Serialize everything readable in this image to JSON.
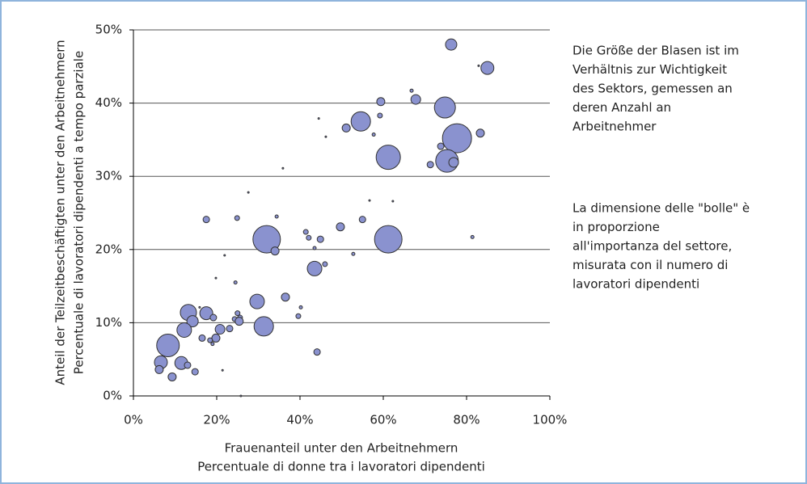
{
  "chart_data": {
    "type": "bubble",
    "xlabel": [
      "Frauenanteil unter den Arbeitnehmern",
      "Percentuale di donne tra i lavoratori dipendenti"
    ],
    "ylabel": [
      "Anteil der Teilzeitbeschäftigten unter den Arbeitnehmern",
      "Percentuale di lavoratori dipendenti a tempo parziale"
    ],
    "annotations": [
      [
        "Die Größe der Blasen ist im",
        "Verhältnis zur Wichtigkeit",
        "des Sektors, gemessen an",
        "deren Anzahl an",
        "Arbeitnehmer"
      ],
      [
        "La dimensione delle \"bolle\" è",
        "in proporzione",
        "all'importanza del settore,",
        "misurata con il numero di",
        "lavoratori dipendenti"
      ]
    ],
    "xlim": [
      0,
      100
    ],
    "ylim": [
      0,
      50
    ],
    "xticks": [
      {
        "value": 0,
        "label": "0%"
      },
      {
        "value": 20,
        "label": "20%"
      },
      {
        "value": 40,
        "label": "40%"
      },
      {
        "value": 60,
        "label": "60%"
      },
      {
        "value": 80,
        "label": "80%"
      },
      {
        "value": 100,
        "label": "100%"
      }
    ],
    "yticks": [
      {
        "value": 0,
        "label": "0%"
      },
      {
        "value": 10,
        "label": "10%"
      },
      {
        "value": 20,
        "label": "20%"
      },
      {
        "value": 30,
        "label": "30%"
      },
      {
        "value": 40,
        "label": "40%"
      },
      {
        "value": 50,
        "label": "50%"
      }
    ],
    "grid": true,
    "series": [
      {
        "color": "#8a92cf",
        "x": [
          76.3,
          85.0,
          82.9,
          74.8,
          67.8,
          66.8,
          59.4,
          54.6,
          59.2,
          51.1,
          44.5,
          46.2,
          57.7,
          77.7,
          73.8,
          83.3,
          61.2,
          75.3,
          76.9,
          71.3,
          35.9,
          27.6,
          62.3,
          56.7,
          17.5,
          24.9,
          34.4,
          55.0,
          49.7,
          41.4,
          42.1,
          44.9,
          32.0,
          61.2,
          81.4,
          43.5,
          34.0,
          21.9,
          52.8,
          46.0,
          43.5,
          19.8,
          24.5,
          36.5,
          29.7,
          40.2,
          13.2,
          17.5,
          15.9,
          19.2,
          25.0,
          25.6,
          24.3,
          39.6,
          14.2,
          25.4,
          31.3,
          20.8,
          23.1,
          12.2,
          16.5,
          19.8,
          18.4,
          19.0,
          8.3,
          44.1,
          6.6,
          11.5,
          13.0,
          6.2,
          14.8,
          21.4,
          9.3,
          25.8
        ],
        "values": [
          48.0,
          44.8,
          45.1,
          39.4,
          40.5,
          41.7,
          40.2,
          37.5,
          38.3,
          36.6,
          37.9,
          35.4,
          35.7,
          35.2,
          34.1,
          35.9,
          32.6,
          32.1,
          31.9,
          31.6,
          31.1,
          27.8,
          26.6,
          26.7,
          24.1,
          24.3,
          24.5,
          24.1,
          23.1,
          22.4,
          21.6,
          21.4,
          21.4,
          21.4,
          21.7,
          20.2,
          19.8,
          19.2,
          19.4,
          18.0,
          17.4,
          16.1,
          15.5,
          13.5,
          12.9,
          12.1,
          11.4,
          11.3,
          12.1,
          10.7,
          11.3,
          10.7,
          10.5,
          10.9,
          10.2,
          10.2,
          9.5,
          9.1,
          9.2,
          9.0,
          7.9,
          7.9,
          7.6,
          7.1,
          6.9,
          6.0,
          4.6,
          4.5,
          4.2,
          3.6,
          3.3,
          3.5,
          2.6,
          0
        ],
        "sizes": [
          49,
          64,
          1,
          169,
          36,
          4,
          25,
          144,
          9,
          25,
          1,
          1,
          4,
          324,
          16,
          25,
          225,
          196,
          36,
          16,
          1,
          1,
          1,
          1,
          16,
          9,
          4,
          16,
          25,
          9,
          9,
          16,
          289,
          289,
          4,
          4,
          25,
          1,
          4,
          9,
          81,
          1,
          4,
          25,
          81,
          4,
          100,
          64,
          1,
          16,
          9,
          9,
          9,
          9,
          49,
          25,
          144,
          36,
          16,
          81,
          16,
          25,
          9,
          4,
          196,
          16,
          64,
          64,
          16,
          25,
          16,
          1,
          25,
          1
        ]
      }
    ]
  }
}
